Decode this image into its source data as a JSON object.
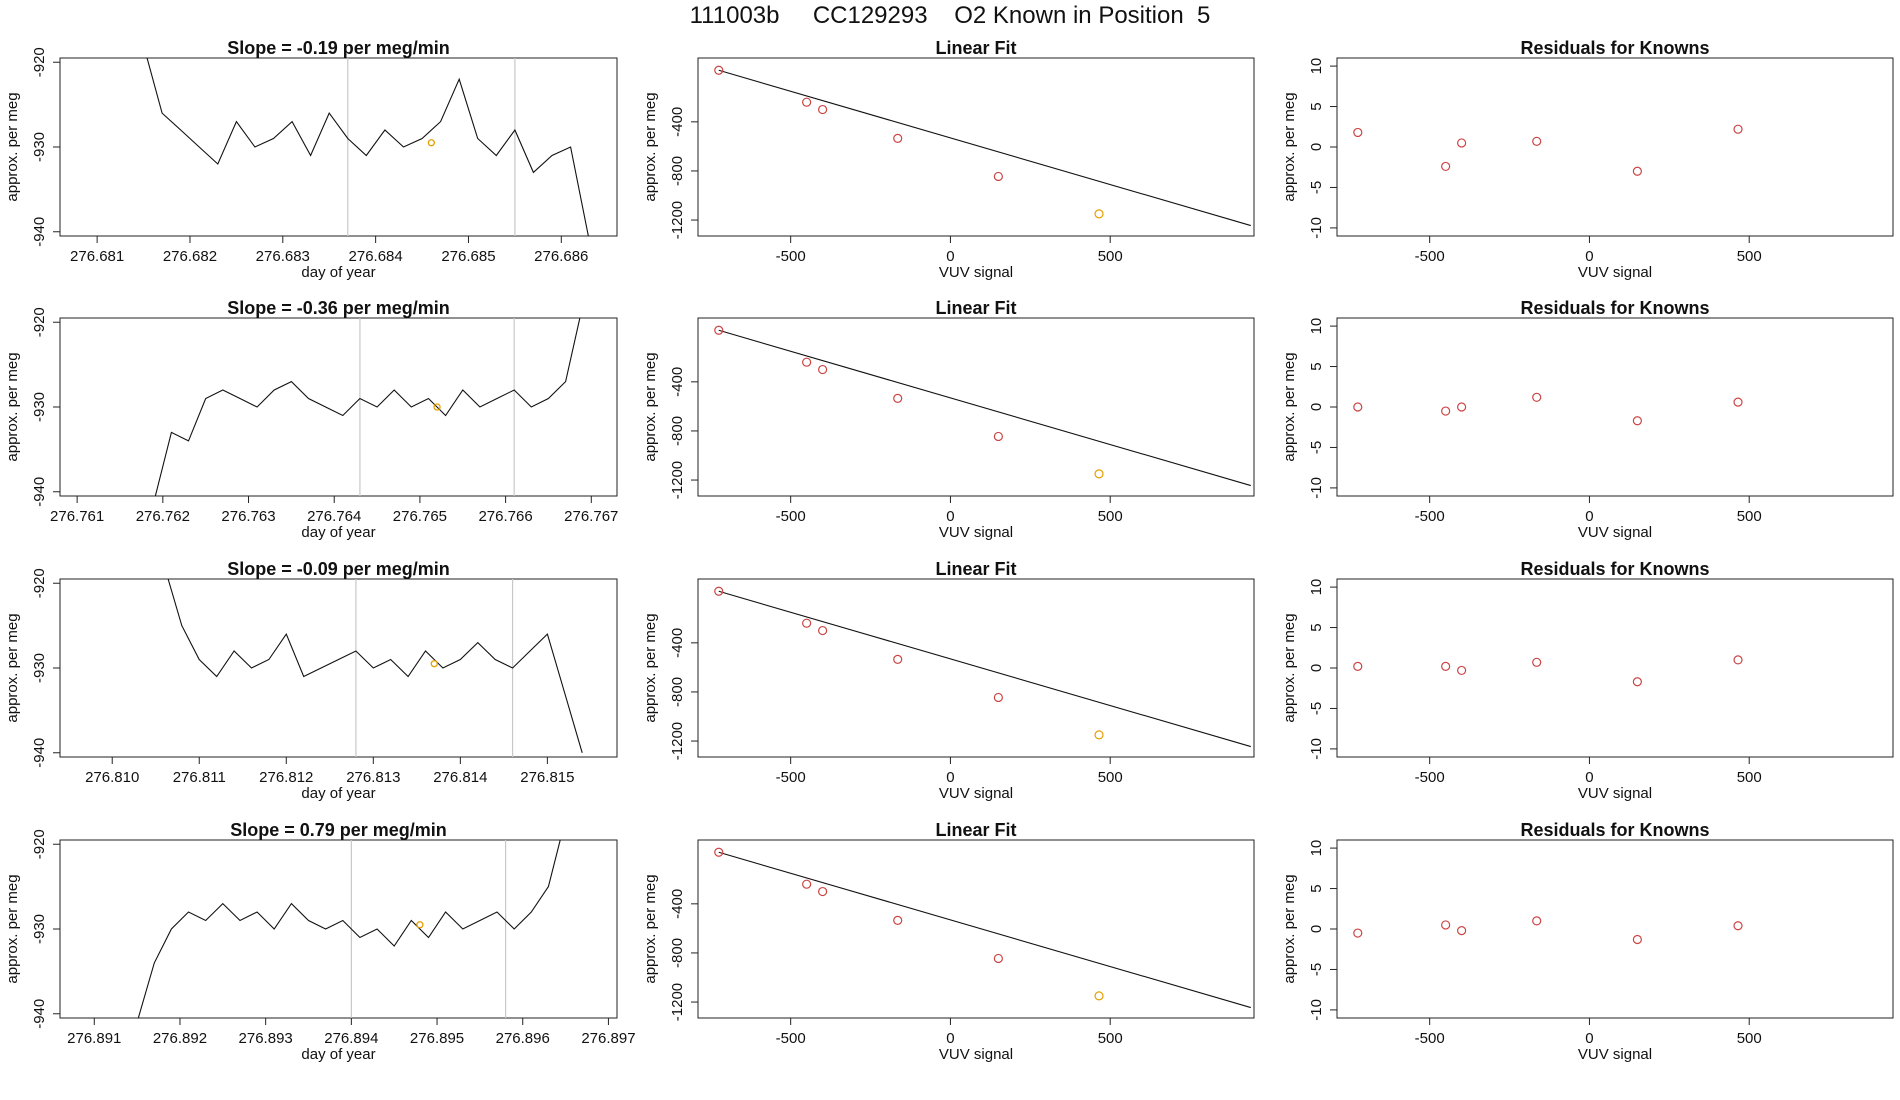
{
  "header": {
    "title": "111003b     CC129293    O2 Known in Position  5"
  },
  "colors": {
    "line": "#111111",
    "known_point": "#cc4444",
    "highlight_point": "#e69f00",
    "separator": "#c8c8c8"
  },
  "axis_labels": {
    "ts_x": "day of year",
    "ts_y": "approx. per meg",
    "fit_x": "VUV signal",
    "fit_y": "approx. per meg"
  },
  "chart_data": [
    {
      "id": "ts1",
      "type": "line",
      "title": "Slope =  -0.19  per meg/min",
      "xlabel": "day of year",
      "ylabel": "approx. per meg",
      "xticks": [
        "276.681",
        "276.682",
        "276.683",
        "276.684",
        "276.685",
        "276.686"
      ],
      "yticks": [
        "-940",
        "-930",
        "-920"
      ],
      "xlim": [
        276.6806,
        276.6866
      ],
      "ylim": [
        -940.5,
        -919.5
      ],
      "vlines": [
        276.6837,
        276.6855
      ],
      "highlight": {
        "x": 276.6846,
        "y": -929.5
      },
      "series": [
        {
          "x": [
            276.6815,
            276.6817,
            276.6819,
            276.6821,
            276.6823,
            276.6825,
            276.6827,
            276.6829,
            276.6831,
            276.6833,
            276.6835,
            276.6837,
            276.6839,
            276.6841,
            276.6843,
            276.6845,
            276.6847,
            276.6849,
            276.6851,
            276.6853,
            276.6855,
            276.6857,
            276.6859,
            276.6861,
            276.6863
          ],
          "y": [
            -918,
            -926,
            -928,
            -930,
            -932,
            -927,
            -930,
            -929,
            -927,
            -931,
            -926,
            -929,
            -931,
            -928,
            -930,
            -929,
            -927,
            -922,
            -929,
            -931,
            -928,
            -933,
            -931,
            -930,
            -941
          ]
        }
      ]
    },
    {
      "id": "ts2",
      "type": "line",
      "title": "Slope =  -0.36  per meg/min",
      "xlabel": "day of year",
      "ylabel": "approx. per meg",
      "xticks": [
        "276.761",
        "276.762",
        "276.763",
        "276.764",
        "276.765",
        "276.766",
        "276.767"
      ],
      "yticks": [
        "-940",
        "-930",
        "-920"
      ],
      "xlim": [
        276.7608,
        276.7673
      ],
      "ylim": [
        -940.5,
        -919.5
      ],
      "vlines": [
        276.7643,
        276.7661
      ],
      "highlight": {
        "x": 276.7652,
        "y": -930
      },
      "series": [
        {
          "x": [
            276.7619,
            276.7621,
            276.7623,
            276.7625,
            276.7627,
            276.7629,
            276.7631,
            276.7633,
            276.7635,
            276.7637,
            276.7639,
            276.7641,
            276.7643,
            276.7645,
            276.7647,
            276.7649,
            276.7651,
            276.7653,
            276.7655,
            276.7657,
            276.7659,
            276.7661,
            276.7663,
            276.7665,
            276.7667,
            276.7669
          ],
          "y": [
            -941,
            -933,
            -934,
            -929,
            -928,
            -929,
            -930,
            -928,
            -927,
            -929,
            -930,
            -931,
            -929,
            -930,
            -928,
            -930,
            -929,
            -931,
            -928,
            -930,
            -929,
            -928,
            -930,
            -929,
            -927,
            -918
          ]
        }
      ]
    },
    {
      "id": "ts3",
      "type": "line",
      "title": "Slope =  -0.09  per meg/min",
      "xlabel": "day of year",
      "ylabel": "approx. per meg",
      "xticks": [
        "276.810",
        "276.811",
        "276.812",
        "276.813",
        "276.814",
        "276.815"
      ],
      "yticks": [
        "-940",
        "-930",
        "-920"
      ],
      "xlim": [
        276.8094,
        276.8158
      ],
      "ylim": [
        -940.5,
        -919.5
      ],
      "vlines": [
        276.8128,
        276.8146
      ],
      "highlight": {
        "x": 276.8137,
        "y": -929.5
      },
      "series": [
        {
          "x": [
            276.8106,
            276.8108,
            276.811,
            276.8112,
            276.8114,
            276.8116,
            276.8118,
            276.812,
            276.8122,
            276.8124,
            276.8126,
            276.8128,
            276.813,
            276.8132,
            276.8134,
            276.8136,
            276.8138,
            276.814,
            276.8142,
            276.8144,
            276.8146,
            276.8148,
            276.815,
            276.8152,
            276.8154
          ],
          "y": [
            -918,
            -925,
            -929,
            -931,
            -928,
            -930,
            -929,
            -926,
            -931,
            -930,
            -929,
            -928,
            -930,
            -929,
            -931,
            -928,
            -930,
            -929,
            -927,
            -929,
            -930,
            -928,
            -926,
            -933,
            -940
          ]
        }
      ]
    },
    {
      "id": "ts4",
      "type": "line",
      "title": "Slope =  0.79  per meg/min",
      "xlabel": "day of year",
      "ylabel": "approx. per meg",
      "xticks": [
        "276.891",
        "276.892",
        "276.893",
        "276.894",
        "276.895",
        "276.896",
        "276.897"
      ],
      "yticks": [
        "-940",
        "-930",
        "-920"
      ],
      "xlim": [
        276.8906,
        276.8971
      ],
      "ylim": [
        -940.5,
        -919.5
      ],
      "vlines": [
        276.894,
        276.8958
      ],
      "highlight": {
        "x": 276.8948,
        "y": -929.5
      },
      "series": [
        {
          "x": [
            276.8915,
            276.8917,
            276.8919,
            276.8921,
            276.8923,
            276.8925,
            276.8927,
            276.8929,
            276.8931,
            276.8933,
            276.8935,
            276.8937,
            276.8939,
            276.8941,
            276.8943,
            276.8945,
            276.8947,
            276.8949,
            276.8951,
            276.8953,
            276.8955,
            276.8957,
            276.8959,
            276.8961,
            276.8963,
            276.8965
          ],
          "y": [
            -941,
            -934,
            -930,
            -928,
            -929,
            -927,
            -929,
            -928,
            -930,
            -927,
            -929,
            -930,
            -929,
            -931,
            -930,
            -932,
            -929,
            -931,
            -928,
            -930,
            -929,
            -928,
            -930,
            -928,
            -925,
            -917
          ]
        }
      ]
    },
    {
      "id": "fit",
      "type": "scatter",
      "title": "Linear Fit",
      "xlabel": "VUV signal",
      "ylabel": "approx. per meg",
      "xticks": [
        "-500",
        "0",
        "500"
      ],
      "yticks": [
        "-1200",
        "-800",
        "-400"
      ],
      "xlim": [
        -790,
        950
      ],
      "ylim": [
        -1330,
        120
      ],
      "x": [
        -725,
        -450,
        -400,
        -165,
        150,
        465
      ],
      "y": [
        20,
        -240,
        -300,
        -535,
        -845,
        -1150
      ],
      "highlight_index": 5,
      "fit_line": {
        "x": [
          -725,
          940
        ],
        "y": [
          20,
          -1245
        ]
      }
    },
    {
      "id": "resid",
      "type": "scatter",
      "title": "Residuals for Knowns",
      "xlabel": "VUV signal",
      "ylabel": "approx. per meg",
      "xticks": [
        "-500",
        "0",
        "500"
      ],
      "yticks": [
        "-10",
        "-5",
        "0",
        "5",
        "10"
      ],
      "xlim": [
        -790,
        950
      ],
      "ylim": [
        -11,
        11
      ],
      "sets": [
        {
          "x": [
            -725,
            -450,
            -400,
            -165,
            150,
            465
          ],
          "y": [
            1.8,
            -2.4,
            0.5,
            0.7,
            -3.0,
            2.2
          ]
        },
        {
          "x": [
            -725,
            -450,
            -400,
            -165,
            150,
            465
          ],
          "y": [
            0.0,
            -0.5,
            0.0,
            1.2,
            -1.7,
            0.6
          ]
        },
        {
          "x": [
            -725,
            -450,
            -400,
            -165,
            150,
            465
          ],
          "y": [
            0.2,
            0.2,
            -0.3,
            0.7,
            -1.7,
            1.0
          ]
        },
        {
          "x": [
            -725,
            -450,
            -400,
            -165,
            150,
            465
          ],
          "y": [
            -0.5,
            0.5,
            -0.2,
            1.0,
            -1.3,
            0.4
          ]
        }
      ]
    }
  ]
}
